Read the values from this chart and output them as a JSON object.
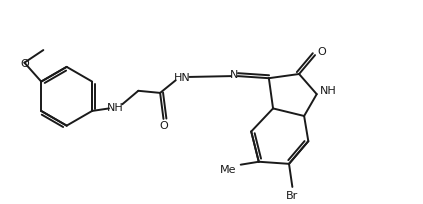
{
  "background": "#ffffff",
  "line_color": "#1a1a1a",
  "line_width": 1.4,
  "font_size": 7.5,
  "fig_width": 4.23,
  "fig_height": 2.05,
  "dpi": 100,
  "xlim": [
    0,
    10.0
  ],
  "ylim": [
    0,
    4.85
  ]
}
